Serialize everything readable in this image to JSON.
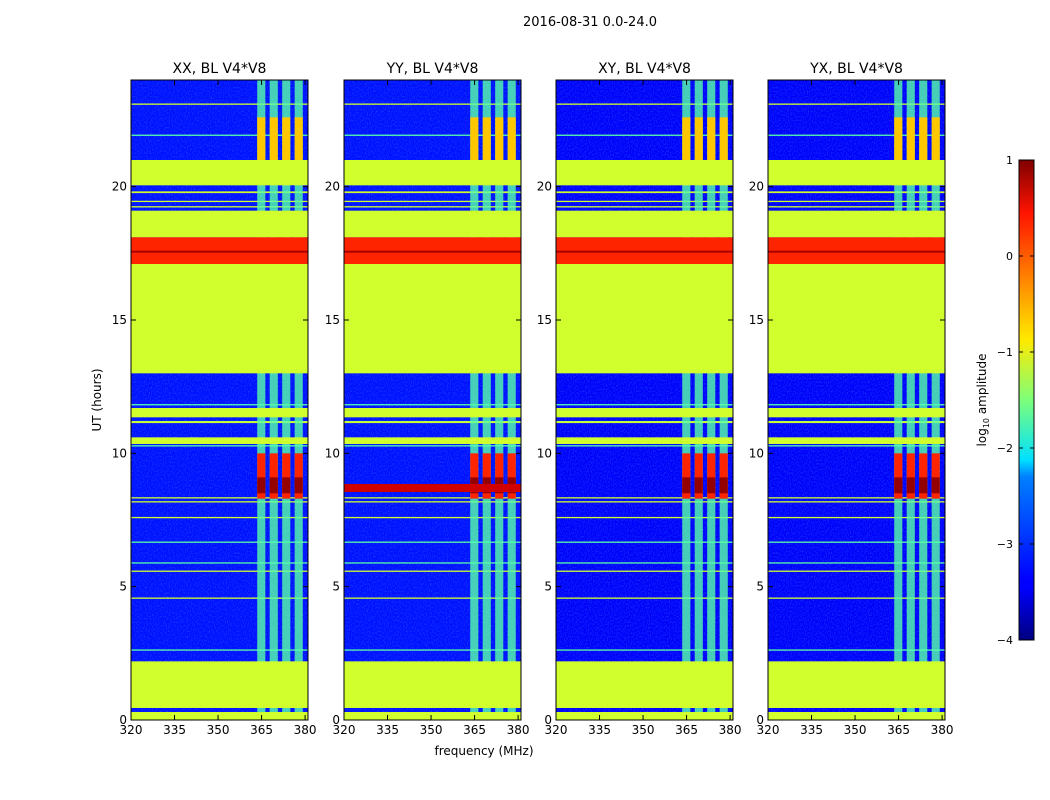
{
  "figure_title": "2016-08-31 0.0-24.0",
  "xlabel": "frequency (MHz)",
  "ylabel": "UT (hours)",
  "colorbar": {
    "label_prefix": "log",
    "label_sub": "10",
    "label_suffix": " amplitude",
    "range": [
      -4,
      1
    ],
    "ticks": [
      "1",
      "0",
      "−1",
      "−2",
      "−3",
      "−4"
    ],
    "tick_values": [
      1,
      0,
      -1,
      -2,
      -3,
      -4
    ]
  },
  "chart_data": {
    "type": "heatmap",
    "colormap": "jet",
    "x_range": [
      320,
      381
    ],
    "y_range": [
      0,
      24
    ],
    "x_ticks": [
      "320",
      "335",
      "350",
      "365",
      "380"
    ],
    "x_tick_values": [
      320,
      335,
      350,
      365,
      380
    ],
    "y_ticks": [
      "0",
      "5",
      "10",
      "15",
      "20"
    ],
    "y_tick_values": [
      0,
      5,
      10,
      15,
      20
    ],
    "panels": [
      {
        "title": "XX, BL V4*V8",
        "background_log_amp": -3.3,
        "rfi_peak_log_amp": 0.9,
        "wideband_at_8_7h": false
      },
      {
        "title": "YY, BL V4*V8",
        "background_log_amp": -3.3,
        "rfi_peak_log_amp": 0.9,
        "wideband_at_8_7h": true
      },
      {
        "title": "XY, BL V4*V8",
        "background_log_amp": -3.4,
        "rfi_peak_log_amp": 0.9,
        "wideband_at_8_7h": false
      },
      {
        "title": "YX, BL V4*V8",
        "background_log_amp": -3.4,
        "rfi_peak_log_amp": 0.9,
        "wideband_at_8_7h": false
      }
    ],
    "flagged_value": -1.1,
    "flagged_time_ranges": [
      [
        0,
        0.3
      ],
      [
        0.45,
        2.2
      ],
      [
        10.35,
        10.6
      ],
      [
        11.35,
        11.7
      ],
      [
        13.0,
        17.1
      ],
      [
        18.1,
        19.1
      ],
      [
        20.05,
        21.0
      ]
    ],
    "strong_band_time_range": [
      17.1,
      18.1
    ],
    "strong_band_value": 0.2,
    "rfi_channels_mhz": [
      [
        363.5,
        366.3
      ],
      [
        367.8,
        370.6
      ],
      [
        372.1,
        374.9
      ],
      [
        376.4,
        379.2
      ]
    ],
    "rfi_base_value": -1.7,
    "rfi_burst_time_range": [
      8.3,
      10.0
    ],
    "rfi_upper_time_range": [
      21.0,
      22.6
    ]
  }
}
